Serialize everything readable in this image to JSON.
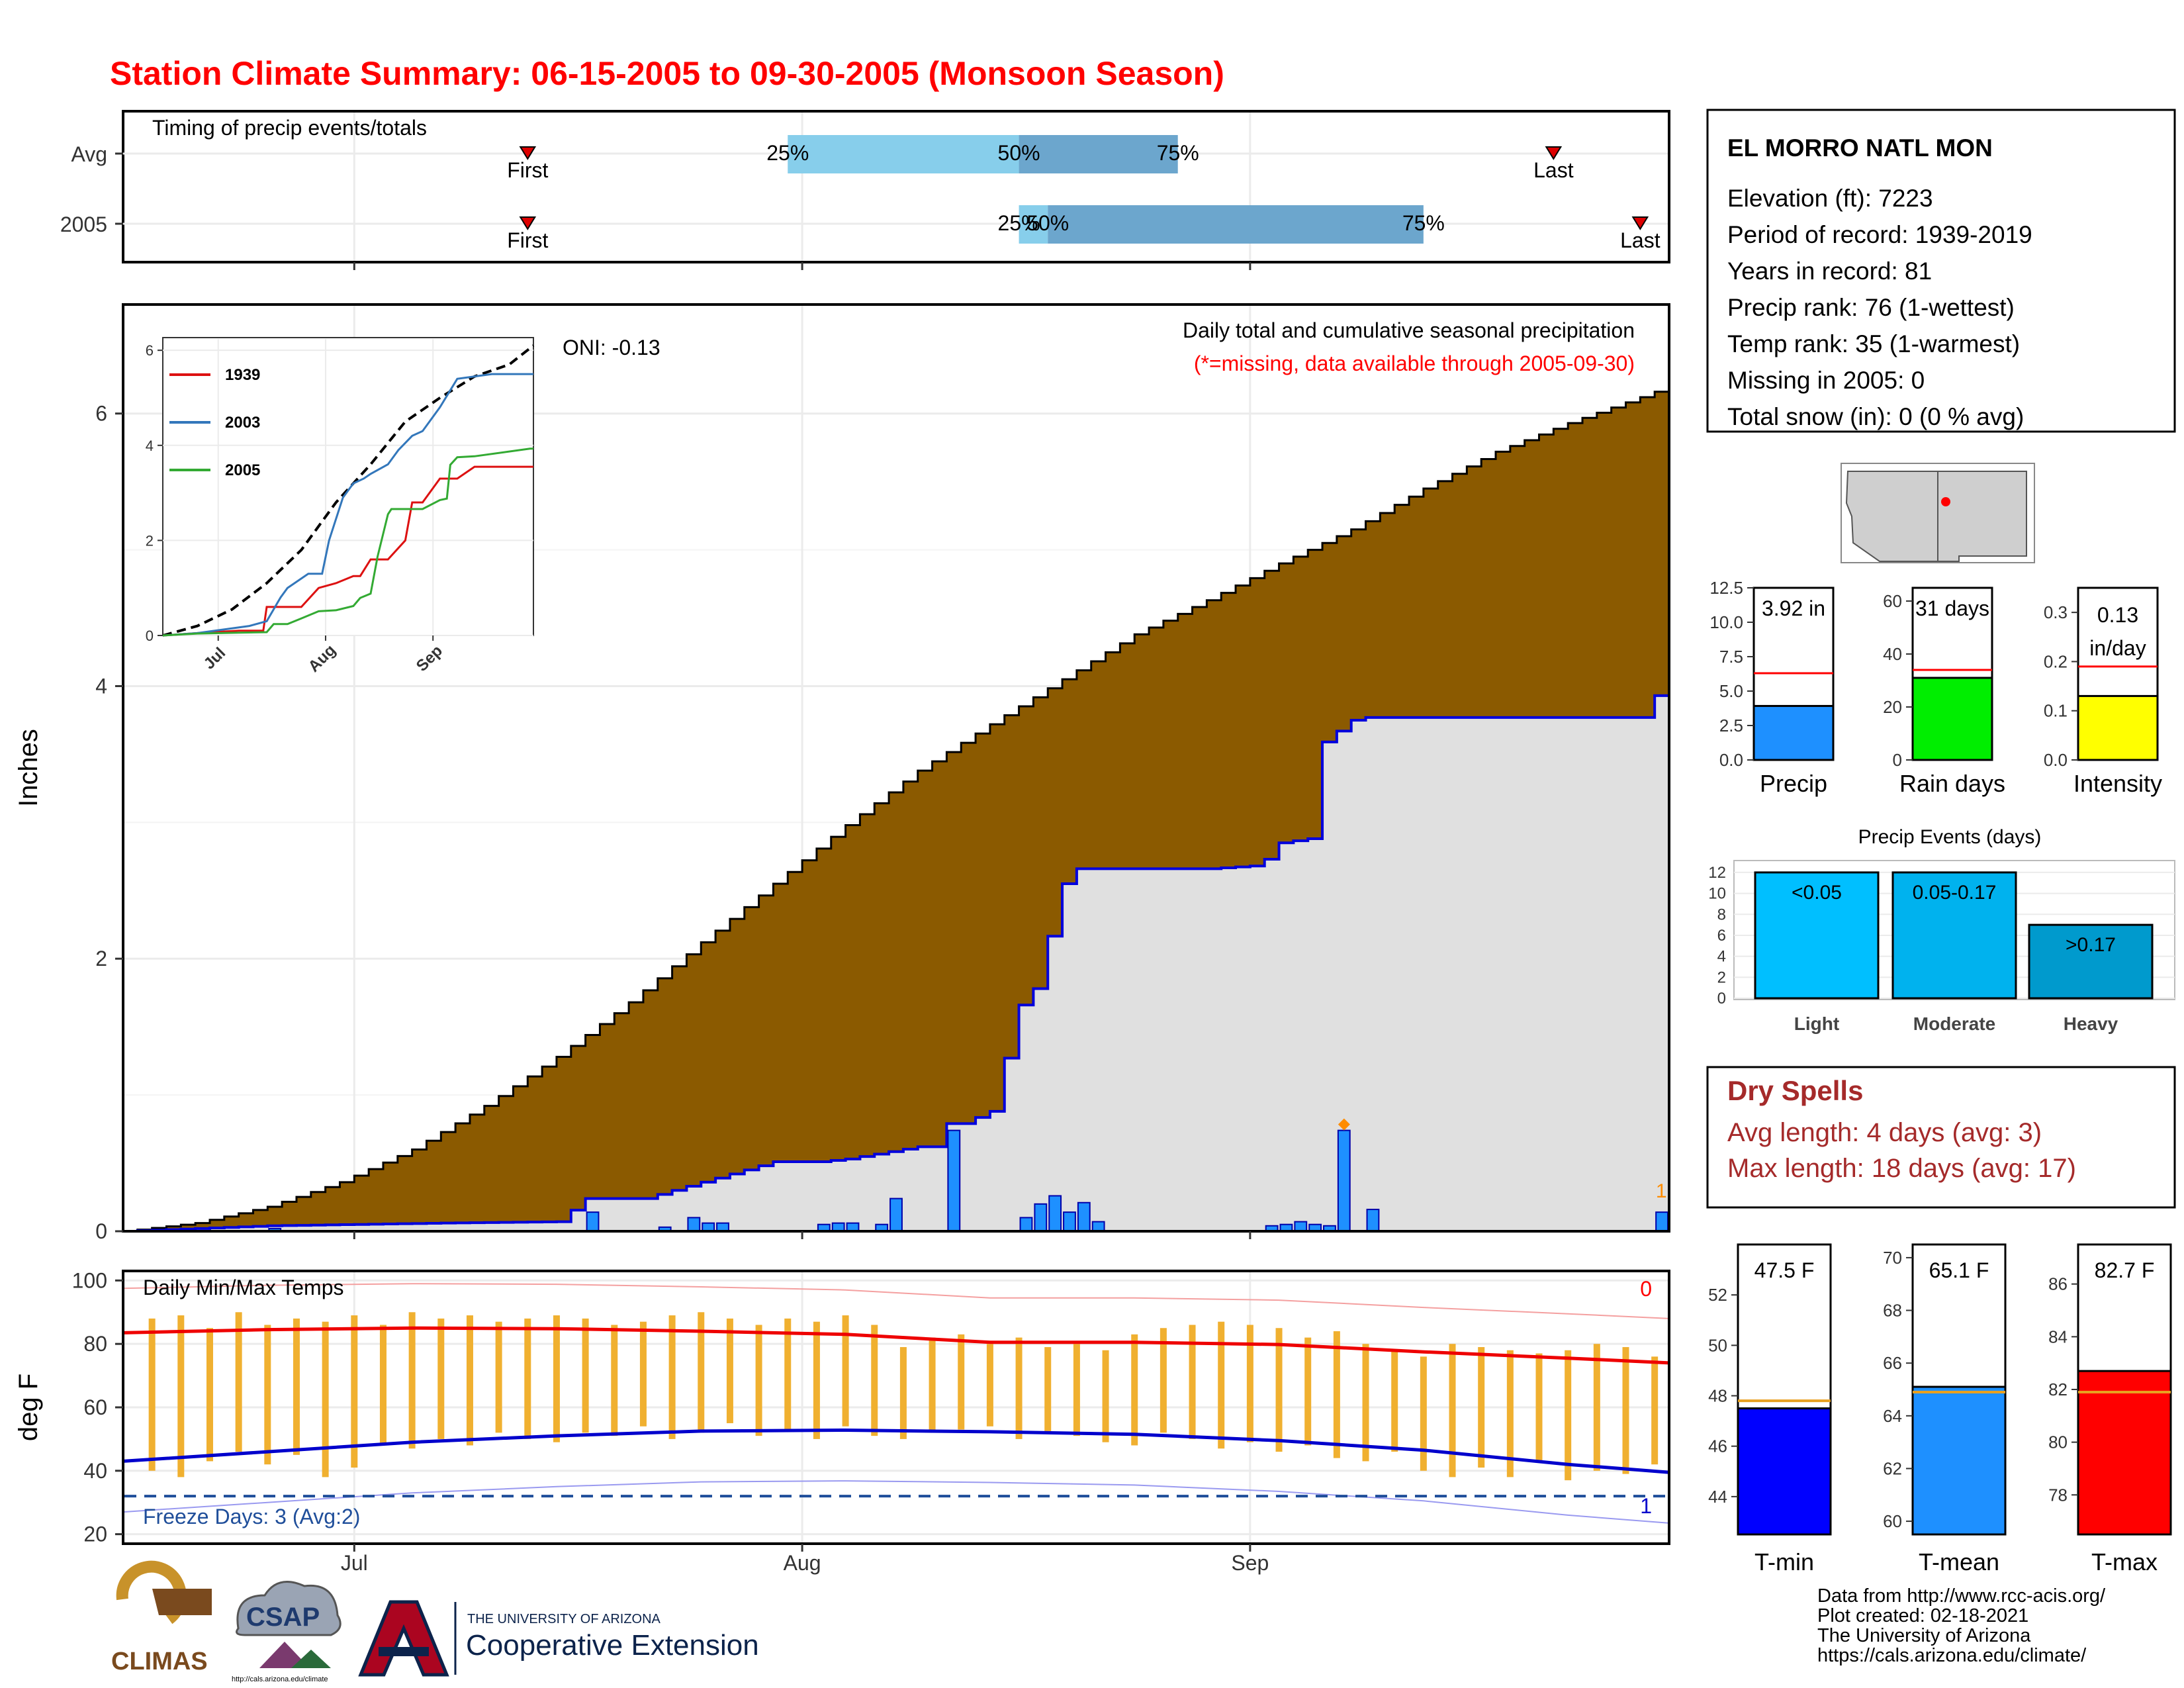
{
  "title": "Station Climate Summary: 06-15-2005 to 09-30-2005 (Monsoon Season)",
  "colors": {
    "title": "#ff0000",
    "cumulative_fill": "#8b5a00",
    "obs_fill": "#e0e0e0",
    "obs_line": "#0000dd",
    "bar": "#1e90ff",
    "temp_bar": "#f0b030",
    "tmax_line": "#ee0000",
    "tmin_line": "#0000cc",
    "freeze": "#1f4e9a",
    "dry_spell": "#a52a2a"
  },
  "timing_panel": {
    "title": "Timing of precip events/totals",
    "rows": [
      {
        "label": "Avg",
        "first_label": "First",
        "last_label": "Last",
        "first_day": 28,
        "last_day": 99,
        "p25_day": 46,
        "p50_day": 62,
        "p75_day": 73,
        "p25_label": "25%",
        "p50_label": "50%",
        "p75_label": "75%"
      },
      {
        "label": "2005",
        "first_label": "First",
        "last_label": "Last",
        "first_day": 28,
        "last_day": 105,
        "p25_day": 62,
        "p50_day": 64,
        "p75_day": 90,
        "p25_label": "25%",
        "p50_label": "50%",
        "p75_label": "75%"
      }
    ]
  },
  "main_chart": {
    "ylabel": "Inches",
    "oni_label": "ONI: -0.13",
    "caption": "Daily total and cumulative seasonal precipitation",
    "missing_note": "(*=missing, data available through 2005-09-30)",
    "x_ticks": [
      {
        "label": "Jul",
        "day": 16
      },
      {
        "label": "Aug",
        "day": 47
      },
      {
        "label": "Sep",
        "day": 78
      }
    ],
    "y_ticks": [
      0,
      2,
      4,
      6
    ],
    "ylim": [
      0,
      6.8
    ],
    "xlim_days": [
      0,
      107
    ],
    "marker_text": "1",
    "chart_data": {
      "type": "area",
      "x_unit": "days since 06-15-2005",
      "normal_cumulative": {
        "x": [
          0,
          5,
          10,
          15,
          20,
          25,
          30,
          35,
          40,
          45,
          50,
          55,
          60,
          65,
          70,
          75,
          80,
          85,
          90,
          95,
          100,
          105,
          107
        ],
        "y": [
          0.0,
          0.06,
          0.18,
          0.36,
          0.6,
          0.92,
          1.28,
          1.68,
          2.12,
          2.55,
          2.98,
          3.38,
          3.72,
          4.05,
          4.38,
          4.63,
          4.9,
          5.15,
          5.45,
          5.72,
          5.93,
          6.12,
          6.2
        ]
      },
      "observed_cumulative": {
        "x": [
          0,
          10,
          22,
          30,
          32,
          36,
          38,
          40,
          45,
          48,
          50,
          55,
          56,
          57,
          58,
          60,
          62,
          63,
          65,
          66,
          75,
          78,
          79,
          80,
          82,
          83,
          85,
          86,
          90,
          105,
          106,
          107
        ],
        "y": [
          0.0,
          0.04,
          0.06,
          0.07,
          0.24,
          0.24,
          0.3,
          0.36,
          0.51,
          0.51,
          0.53,
          0.62,
          0.62,
          0.79,
          0.79,
          0.88,
          1.66,
          1.78,
          2.55,
          2.66,
          2.66,
          2.68,
          2.73,
          2.85,
          2.88,
          3.59,
          3.75,
          3.77,
          3.77,
          3.77,
          3.93,
          3.93
        ]
      },
      "daily_precip": {
        "day": [
          10,
          32,
          37,
          39,
          40,
          41,
          48,
          49,
          50,
          52,
          53,
          57,
          62,
          63,
          64,
          65,
          66,
          67,
          79,
          80,
          81,
          82,
          83,
          84,
          86,
          106
        ],
        "value": [
          0.02,
          0.14,
          0.03,
          0.1,
          0.06,
          0.06,
          0.05,
          0.06,
          0.06,
          0.05,
          0.24,
          0.74,
          0.1,
          0.2,
          0.26,
          0.14,
          0.21,
          0.07,
          0.04,
          0.05,
          0.07,
          0.05,
          0.04,
          0.74,
          0.16,
          0.14
        ]
      }
    }
  },
  "inset": {
    "x_ticks": [
      {
        "label": "Jul",
        "day": 16
      },
      {
        "label": "Aug",
        "day": 47
      },
      {
        "label": "Sep",
        "day": 78
      }
    ],
    "y_ticks": [
      0,
      2,
      4,
      6
    ],
    "legend": [
      "1939",
      "2003",
      "2005"
    ],
    "chart_data": {
      "type": "line",
      "ylim": [
        0,
        6.1
      ],
      "series": [
        {
          "name": "",
          "color": "#000000",
          "dashed": true,
          "x": [
            0,
            10,
            20,
            30,
            40,
            50,
            60,
            70,
            80,
            90,
            100,
            107
          ],
          "y": [
            0,
            0.2,
            0.55,
            1.1,
            1.8,
            2.8,
            3.6,
            4.5,
            5.0,
            5.45,
            5.7,
            6.1
          ]
        },
        {
          "name": "1939",
          "color": "#dd1111",
          "dashed": false,
          "x": [
            0,
            10,
            22,
            29,
            30,
            32,
            40,
            45,
            50,
            55,
            57,
            60,
            65,
            70,
            72,
            75,
            80,
            85,
            90,
            100,
            107
          ],
          "y": [
            0,
            0.05,
            0.1,
            0.1,
            0.6,
            0.6,
            0.6,
            1.0,
            1.1,
            1.25,
            1.25,
            1.6,
            1.6,
            2.0,
            2.8,
            2.8,
            3.3,
            3.3,
            3.55,
            3.55,
            3.55
          ]
        },
        {
          "name": "2003",
          "color": "#3377bb",
          "dashed": false,
          "x": [
            0,
            10,
            25,
            30,
            34,
            36,
            42,
            46,
            48,
            52,
            55,
            58,
            60,
            65,
            68,
            72,
            75,
            80,
            85,
            95,
            107
          ],
          "y": [
            0,
            0.05,
            0.2,
            0.3,
            0.8,
            1.0,
            1.3,
            1.3,
            2.0,
            2.9,
            3.2,
            3.3,
            3.4,
            3.6,
            3.9,
            4.2,
            4.3,
            4.8,
            5.4,
            5.5,
            5.5
          ]
        },
        {
          "name": "2005",
          "color": "#33aa33",
          "dashed": false,
          "x": [
            0,
            10,
            22,
            30,
            32,
            36,
            40,
            45,
            50,
            55,
            57,
            60,
            62,
            65,
            66,
            75,
            80,
            82,
            83,
            85,
            90,
            106,
            107
          ],
          "y": [
            0,
            0.04,
            0.06,
            0.07,
            0.24,
            0.24,
            0.36,
            0.51,
            0.53,
            0.62,
            0.79,
            0.88,
            1.66,
            2.55,
            2.66,
            2.66,
            2.85,
            2.88,
            3.59,
            3.75,
            3.77,
            3.93,
            3.93
          ]
        }
      ]
    }
  },
  "temp_panel": {
    "ylabel": "deg F",
    "title": "Daily Min/Max Temps",
    "freeze_label": "Freeze Days: 3 (Avg:2)",
    "top_right_count": "0",
    "bottom_right_count": "1",
    "y_ticks": [
      20,
      40,
      60,
      80,
      100
    ],
    "ylim": [
      17,
      103
    ],
    "freeze_line": 32,
    "chart_data": {
      "type": "bar",
      "x_unit": "days since 06-15-2005",
      "tmax_normal": {
        "x": [
          0,
          10,
          20,
          30,
          40,
          50,
          60,
          70,
          80,
          90,
          100,
          107
        ],
        "y": [
          83.5,
          84.5,
          85,
          84.8,
          84,
          83,
          80.5,
          80.5,
          79.8,
          77.5,
          75.5,
          74
        ]
      },
      "tmin_normal": {
        "x": [
          0,
          10,
          20,
          30,
          40,
          50,
          60,
          70,
          80,
          90,
          100,
          107
        ],
        "y": [
          43,
          46,
          49,
          51,
          52.5,
          52.8,
          52.3,
          51.5,
          49.5,
          46.5,
          42,
          39.5
        ]
      },
      "daily_min_max": {
        "day": [
          2,
          4,
          6,
          8,
          10,
          12,
          14,
          16,
          18,
          20,
          22,
          24,
          26,
          28,
          30,
          32,
          34,
          36,
          38,
          40,
          42,
          44,
          46,
          48,
          50,
          52,
          54,
          56,
          58,
          60,
          62,
          64,
          66,
          68,
          70,
          72,
          74,
          76,
          78,
          80,
          82,
          84,
          86,
          88,
          90,
          92,
          94,
          96,
          98,
          100,
          102,
          104,
          106
        ],
        "tmin": [
          40,
          38,
          43,
          46,
          42,
          45,
          38,
          41,
          48,
          47,
          50,
          48,
          52,
          50,
          49,
          52,
          51,
          54,
          50,
          52,
          55,
          51,
          53,
          50,
          54,
          51,
          50,
          52,
          53,
          54,
          50,
          52,
          51,
          49,
          48,
          52,
          50,
          47,
          49,
          46,
          48,
          44,
          43,
          46,
          40,
          38,
          41,
          38,
          43,
          37,
          40,
          39,
          42
        ],
        "tmax": [
          88,
          89,
          85,
          90,
          86,
          88,
          87,
          89,
          86,
          90,
          88,
          89,
          87,
          88,
          89,
          88,
          86,
          87,
          89,
          90,
          88,
          86,
          88,
          87,
          89,
          86,
          79,
          82,
          83,
          80,
          82,
          79,
          80,
          78,
          83,
          85,
          86,
          87,
          86,
          85,
          82,
          84,
          80,
          78,
          76,
          80,
          79,
          78,
          77,
          78,
          80,
          79,
          76
        ]
      }
    }
  },
  "station_box": {
    "name": "EL MORRO NATL MON",
    "lines": [
      "Elevation (ft): 7223",
      "Period of record: 1939-2019",
      "Years in record: 81",
      "Precip rank: 76 (1-wettest)",
      "Temp rank: 35 (1-warmest)",
      "Missing in 2005: 0",
      "Total snow (in): 0 (0 % avg)"
    ]
  },
  "summary_bars": [
    {
      "label": "Precip",
      "value_label": "3.92 in",
      "value": 3.92,
      "normal": 6.3,
      "ymax": 12.5,
      "y_ticks": [
        "12.5",
        "10.0",
        "7.5",
        "5.0",
        "2.5",
        "0.0"
      ],
      "color": "#1e90ff"
    },
    {
      "label": "Rain days",
      "value_label": "31 days",
      "value": 31,
      "normal": 34,
      "ymax": 65,
      "y_ticks": [
        "60",
        "40",
        "20",
        "0"
      ],
      "color": "#00ee00"
    },
    {
      "label": "Intensity",
      "value_label": "0.13 in/day",
      "value": 0.13,
      "normal": 0.19,
      "ymax": 0.35,
      "y_ticks": [
        "0.3",
        "0.2",
        "0.1",
        "0.0"
      ],
      "color": "#ffff00"
    }
  ],
  "precip_events": {
    "title": "Precip Events (days)",
    "y_ticks": [
      0,
      2,
      4,
      6,
      8,
      10,
      12
    ],
    "ymax": 12.5,
    "chart_data": {
      "type": "bar",
      "categories": [
        "Light",
        "Moderate",
        "Heavy"
      ],
      "bin_labels": [
        "<0.05",
        "0.05-0.17",
        ">0.17"
      ],
      "values": [
        12,
        12,
        7
      ],
      "colors": [
        "#00bfff",
        "#00b2ee",
        "#009acd"
      ]
    }
  },
  "dry_spells": {
    "title": "Dry Spells",
    "avg_line": "Avg length: 4 days (avg: 3)",
    "max_line": "Max length: 18 days (avg: 17)"
  },
  "temp_summary": [
    {
      "label": "T-min",
      "value_label": "47.5 F",
      "value": 47.5,
      "normal": 47.8,
      "ylim": [
        42.5,
        54
      ],
      "y_ticks": [
        44,
        46,
        48,
        50,
        52
      ],
      "color": "#0000ff"
    },
    {
      "label": "T-mean",
      "value_label": "65.1 F",
      "value": 65.1,
      "normal": 64.9,
      "ylim": [
        59.5,
        70.5
      ],
      "y_ticks": [
        60,
        62,
        64,
        66,
        68,
        70
      ],
      "color": "#1e90ff"
    },
    {
      "label": "T-max",
      "value_label": "82.7 F",
      "value": 82.7,
      "normal": 81.9,
      "ylim": [
        76.5,
        87.5
      ],
      "y_ticks": [
        78,
        80,
        82,
        84,
        86
      ],
      "color": "#ff0000"
    }
  ],
  "footer": {
    "logos": [
      "CLIMAS",
      "CSAP",
      "http://cals.arizona.edu/climate"
    ],
    "ua_small": "THE UNIVERSITY OF ARIZONA",
    "ua_large": "Cooperative Extension",
    "credits": [
      "Data from http://www.rcc-acis.org/",
      "Plot created: 02-18-2021",
      "The University of Arizona",
      "https://cals.arizona.edu/climate/"
    ]
  }
}
